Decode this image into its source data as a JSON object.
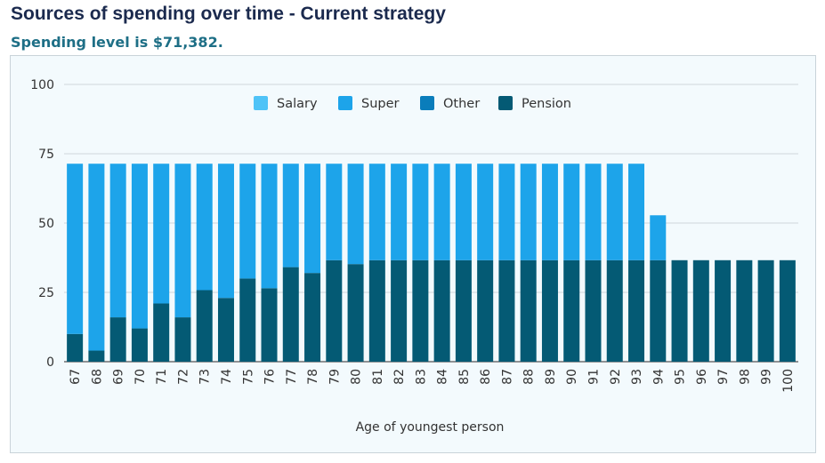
{
  "header": {
    "title": "Sources of spending over time - Current strategy",
    "subtitle": "Spending level is $71,382."
  },
  "chart_data": {
    "type": "bar",
    "stacked": true,
    "xlabel": "Age of youngest person",
    "ylabel": "",
    "ylim": [
      0,
      100
    ],
    "yticks": [
      0,
      25,
      50,
      75,
      100
    ],
    "grid": true,
    "legend_position": "top",
    "categories": [
      "67",
      "68",
      "69",
      "70",
      "71",
      "72",
      "73",
      "74",
      "75",
      "76",
      "77",
      "78",
      "79",
      "80",
      "81",
      "82",
      "83",
      "84",
      "85",
      "86",
      "87",
      "88",
      "89",
      "90",
      "91",
      "92",
      "93",
      "94",
      "95",
      "96",
      "97",
      "98",
      "99",
      "100"
    ],
    "series": [
      {
        "name": "Salary",
        "color": "#4fc3f7",
        "values": [
          0,
          0,
          0,
          0,
          0,
          0,
          0,
          0,
          0,
          0,
          0,
          0,
          0,
          0,
          0,
          0,
          0,
          0,
          0,
          0,
          0,
          0,
          0,
          0,
          0,
          0,
          0,
          0,
          0,
          0,
          0,
          0,
          0,
          0
        ]
      },
      {
        "name": "Super",
        "color": "#1da4ea",
        "values": [
          61.4,
          67.4,
          55.4,
          59.4,
          50.4,
          55.4,
          45.6,
          48.4,
          41.4,
          44.9,
          37.3,
          39.4,
          34.8,
          36.2,
          34.8,
          34.8,
          34.8,
          34.8,
          34.8,
          34.8,
          34.8,
          34.8,
          34.8,
          34.8,
          34.8,
          34.8,
          34.8,
          16.2,
          0,
          0,
          0,
          0,
          0,
          0
        ]
      },
      {
        "name": "Other",
        "color": "#0a7dbb",
        "values": [
          0,
          0,
          0,
          0,
          0,
          0,
          0,
          0,
          0,
          0,
          0,
          0,
          0,
          0,
          0,
          0,
          0,
          0,
          0,
          0,
          0,
          0,
          0,
          0,
          0,
          0,
          0,
          0,
          0,
          0,
          0,
          0,
          0,
          0
        ]
      },
      {
        "name": "Pension",
        "color": "#045a74",
        "values": [
          10,
          4,
          16,
          12,
          21,
          16,
          25.8,
          23,
          30,
          26.5,
          34.1,
          32,
          36.6,
          35.2,
          36.6,
          36.6,
          36.6,
          36.6,
          36.6,
          36.6,
          36.6,
          36.6,
          36.6,
          36.6,
          36.6,
          36.6,
          36.6,
          36.6,
          36.6,
          36.6,
          36.6,
          36.6,
          36.6,
          36.6
        ]
      }
    ]
  }
}
